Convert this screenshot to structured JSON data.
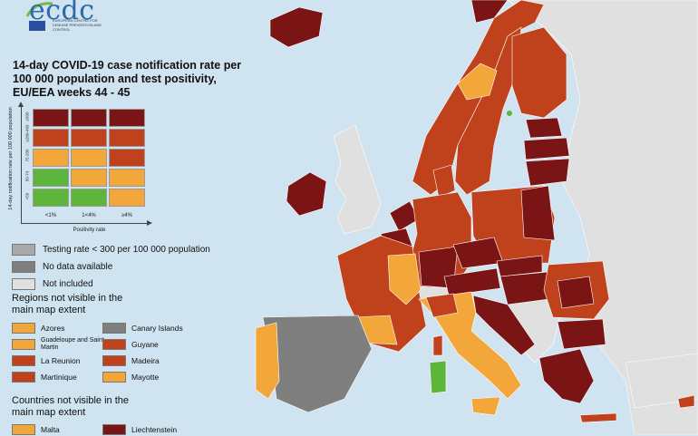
{
  "logo": {
    "text": "ecdc",
    "subtitle": "EUROPEAN CENTRE FOR DISEASE PREVENTION AND CONTROL"
  },
  "title": "14-day COVID-19 case notification rate per 100 000 population and test positivity, EU/EEA weeks 44 - 45",
  "matrix": {
    "y_axis_label": "14-day notification rate per 100 000 population",
    "x_axis_label": "Positivity rate",
    "row_labels": [
      "≥500",
      "≥200-499",
      "75-200",
      "50-74",
      "<50"
    ],
    "col_labels": [
      "<1%",
      "1<4%",
      "≥4%"
    ],
    "cells": [
      [
        "#7b1414",
        "#7b1414",
        "#7b1414"
      ],
      [
        "#c0421d",
        "#c0421d",
        "#c0421d"
      ],
      [
        "#f3a73a",
        "#f3a73a",
        "#c0421d"
      ],
      [
        "#5db53b",
        "#f3a73a",
        "#f3a73a"
      ],
      [
        "#5db53b",
        "#5db53b",
        "#f3a73a"
      ]
    ]
  },
  "legend": [
    {
      "label": "Testing rate < 300 per 100 000 population",
      "color": "#a9a9a9"
    },
    {
      "label": "No data available",
      "color": "#7f7f7f"
    },
    {
      "label": "Not included",
      "color": "#e0e0e0"
    }
  ],
  "regions_heading": "Regions not visible in the main map extent",
  "regions": [
    {
      "label": "Azores",
      "color": "#f3a73a"
    },
    {
      "label": "Canary Islands",
      "color": "#7f7f7f"
    },
    {
      "label": "Guadeloupe and Saint Martin",
      "color": "#f3a73a"
    },
    {
      "label": "Guyane",
      "color": "#c0421d"
    },
    {
      "label": "La Reunion",
      "color": "#c0421d"
    },
    {
      "label": "Madeira",
      "color": "#c0421d"
    },
    {
      "label": "Martinique",
      "color": "#c0421d"
    },
    {
      "label": "Mayotte",
      "color": "#f3a73a"
    }
  ],
  "countries_heading": "Countries not visible in the main map extent",
  "countries": [
    {
      "label": "Malta",
      "color": "#f3a73a"
    },
    {
      "label": "Liechtenstein",
      "color": "#7b1414"
    }
  ],
  "colors": {
    "sea": "#cfe3f0",
    "dark_red": "#7b1414",
    "red": "#c0421d",
    "orange": "#f3a73a",
    "green": "#5db53b",
    "no_data": "#7f7f7f",
    "not_included": "#e0e0e0"
  }
}
